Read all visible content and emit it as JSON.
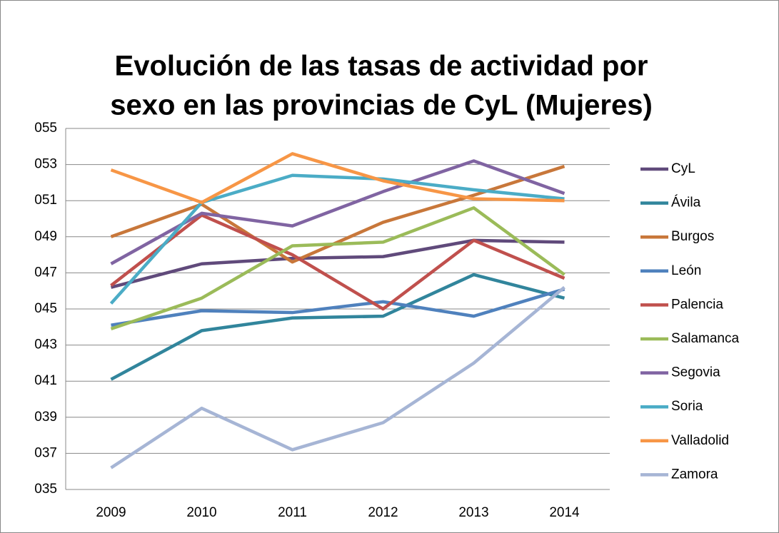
{
  "chart_data": {
    "type": "line",
    "title": [
      "Evolución de las tasas de actividad por",
      "sexo en las provincias de CyL (Mujeres)"
    ],
    "categories": [
      "2009",
      "2010",
      "2011",
      "2012",
      "2013",
      "2014"
    ],
    "ylim": [
      35,
      55
    ],
    "yticks": [
      {
        "value": 35,
        "label": "035"
      },
      {
        "value": 37,
        "label": "037"
      },
      {
        "value": 39,
        "label": "039"
      },
      {
        "value": 41,
        "label": "041"
      },
      {
        "value": 43,
        "label": "043"
      },
      {
        "value": 45,
        "label": "045"
      },
      {
        "value": 47,
        "label": "047"
      },
      {
        "value": 49,
        "label": "049"
      },
      {
        "value": 51,
        "label": "051"
      },
      {
        "value": 53,
        "label": "053"
      },
      {
        "value": 55,
        "label": "055"
      }
    ],
    "grid": true,
    "legend": "right",
    "series": [
      {
        "name": "CyL",
        "color": "#604a7b",
        "values": [
          46.2,
          47.5,
          47.8,
          47.9,
          48.8,
          48.7
        ]
      },
      {
        "name": "Ávila",
        "color": "#31859c",
        "values": [
          41.1,
          43.8,
          44.5,
          44.6,
          46.9,
          45.6
        ]
      },
      {
        "name": "Burgos",
        "color": "#c8773a",
        "values": [
          49.0,
          50.8,
          47.6,
          49.8,
          51.3,
          52.9
        ]
      },
      {
        "name": "León",
        "color": "#4f81bd",
        "values": [
          44.1,
          44.9,
          44.8,
          45.4,
          44.6,
          46.1
        ]
      },
      {
        "name": "Palencia",
        "color": "#c0504d",
        "values": [
          46.3,
          50.2,
          48.0,
          45.0,
          48.8,
          46.7
        ]
      },
      {
        "name": "Salamanca",
        "color": "#9bbb59",
        "values": [
          43.9,
          45.6,
          48.5,
          48.7,
          50.6,
          46.9
        ]
      },
      {
        "name": "Segovia",
        "color": "#8064a2",
        "values": [
          47.5,
          50.3,
          49.6,
          51.5,
          53.2,
          51.4
        ]
      },
      {
        "name": "Soria",
        "color": "#4bacc6",
        "values": [
          45.3,
          50.9,
          52.4,
          52.2,
          51.6,
          51.1
        ]
      },
      {
        "name": "Valladolid",
        "color": "#f79646",
        "values": [
          52.7,
          50.9,
          53.6,
          52.1,
          51.1,
          51.0
        ]
      },
      {
        "name": "Zamora",
        "color": "#a6b5d5",
        "values": [
          36.2,
          39.5,
          37.2,
          38.7,
          42.0,
          46.2
        ]
      }
    ]
  }
}
